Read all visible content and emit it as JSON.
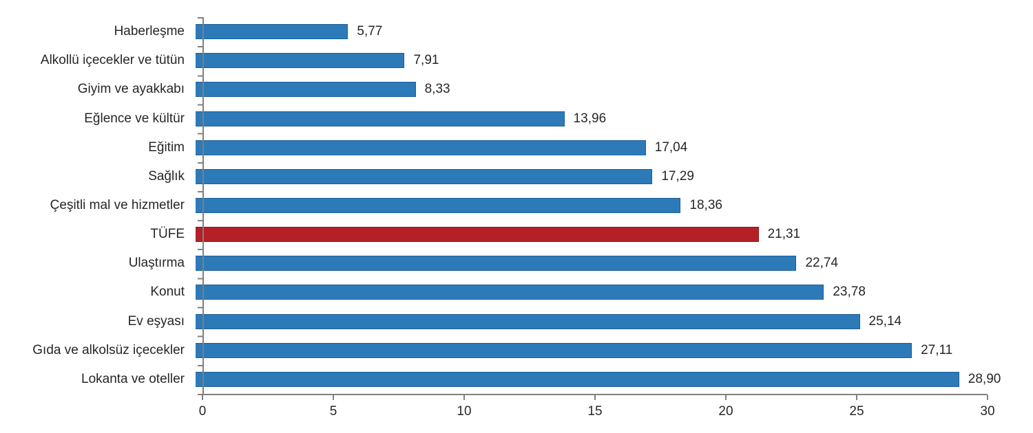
{
  "chart_data": {
    "type": "bar",
    "orientation": "horizontal",
    "title": "",
    "xlabel": "",
    "ylabel": "",
    "xlim": [
      0,
      30
    ],
    "x_ticks": [
      "0",
      "5",
      "10",
      "15",
      "20",
      "25",
      "30"
    ],
    "x_tick_values": [
      0,
      5,
      10,
      15,
      20,
      25,
      30
    ],
    "grid": false,
    "legend": "none",
    "decimal_separator": ",",
    "bar_color": "#2d7ab9",
    "highlight_color": "#b42025",
    "axis_color": "#808080",
    "text_color": "#262626",
    "highlight_index": 7,
    "categories": [
      "Haberleşme",
      "Alkollü içecekler ve tütün",
      "Giyim ve ayakkabı",
      "Eğlence ve kültür",
      "Eğitim",
      "Sağlık",
      "Çeşitli mal ve hizmetler",
      "TÜFE",
      "Ulaştırma",
      "Konut",
      "Ev eşyası",
      "Gıda ve alkolsüz içecekler",
      "Lokanta ve oteller"
    ],
    "values": [
      5.77,
      7.91,
      8.33,
      13.96,
      17.04,
      17.29,
      18.36,
      21.31,
      22.74,
      23.78,
      25.14,
      27.11,
      28.9
    ],
    "value_labels": [
      "5,77",
      "7,91",
      "8,33",
      "13,96",
      "17,04",
      "17,29",
      "18,36",
      "21,31",
      "22,74",
      "23,78",
      "25,14",
      "27,11",
      "28,90"
    ]
  }
}
